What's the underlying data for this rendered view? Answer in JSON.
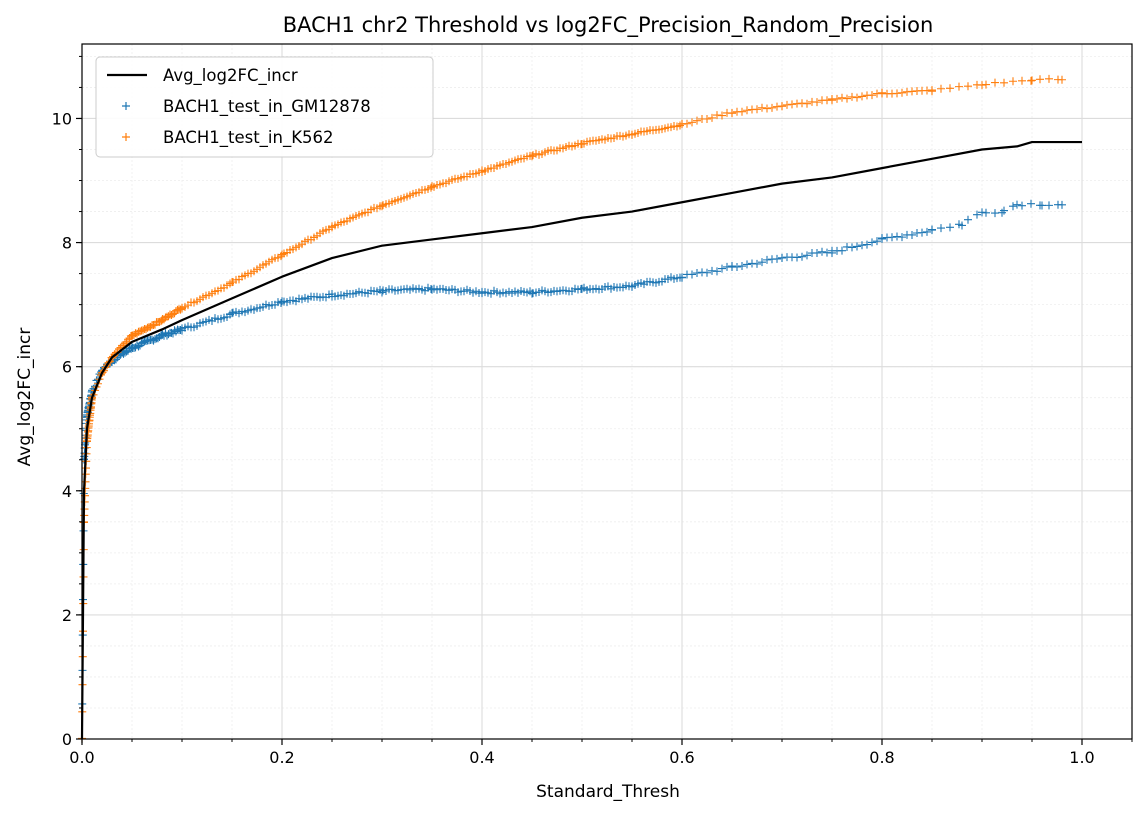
{
  "chart_data": {
    "type": "line",
    "title": "BACH1 chr2 Threshold vs log2FC_Precision_Random_Precision",
    "xlabel": "Standard_Thresh",
    "ylabel": "Avg_log2FC_incr",
    "xlim": [
      0.0,
      1.05
    ],
    "ylim": [
      0,
      11.2
    ],
    "xticks": [
      "0.0",
      "0.2",
      "0.4",
      "0.6",
      "0.8",
      "1.0"
    ],
    "yticks": [
      "0",
      "2",
      "4",
      "6",
      "8",
      "10"
    ],
    "grid": "major and minor",
    "legend_position": "top-left",
    "series": [
      {
        "name": "Avg_log2FC_incr",
        "style": "line",
        "color": "#000000",
        "x": [
          0.0,
          0.002,
          0.005,
          0.01,
          0.02,
          0.03,
          0.05,
          0.08,
          0.1,
          0.15,
          0.2,
          0.25,
          0.3,
          0.35,
          0.4,
          0.45,
          0.5,
          0.55,
          0.6,
          0.65,
          0.7,
          0.75,
          0.8,
          0.85,
          0.9,
          0.935,
          0.95,
          1.0
        ],
        "y": [
          0.0,
          4.0,
          5.0,
          5.5,
          5.9,
          6.15,
          6.4,
          6.6,
          6.75,
          7.1,
          7.45,
          7.75,
          7.95,
          8.05,
          8.15,
          8.25,
          8.4,
          8.5,
          8.65,
          8.8,
          8.95,
          9.05,
          9.2,
          9.35,
          9.5,
          9.55,
          9.62,
          9.62
        ]
      },
      {
        "name": "BACH1_test_in_GM12878",
        "style": "scatter",
        "marker": "+",
        "color": "#1f77b4",
        "x": [
          0.0,
          0.002,
          0.005,
          0.01,
          0.02,
          0.03,
          0.05,
          0.08,
          0.1,
          0.15,
          0.2,
          0.25,
          0.3,
          0.35,
          0.4,
          0.45,
          0.5,
          0.55,
          0.6,
          0.65,
          0.7,
          0.75,
          0.8,
          0.85,
          0.88,
          0.9,
          0.92,
          0.935,
          0.96,
          0.98
        ],
        "y": [
          0.0,
          4.5,
          5.2,
          5.6,
          5.95,
          6.1,
          6.3,
          6.5,
          6.6,
          6.85,
          7.05,
          7.15,
          7.22,
          7.25,
          7.2,
          7.2,
          7.25,
          7.3,
          7.45,
          7.6,
          7.75,
          7.85,
          8.05,
          8.2,
          8.3,
          8.5,
          8.5,
          8.62,
          8.62,
          8.62
        ]
      },
      {
        "name": "BACH1_test_in_K562",
        "style": "scatter",
        "marker": "+",
        "color": "#ff7f0e",
        "x": [
          0.0,
          0.002,
          0.005,
          0.01,
          0.02,
          0.03,
          0.05,
          0.08,
          0.1,
          0.15,
          0.2,
          0.25,
          0.3,
          0.35,
          0.4,
          0.45,
          0.5,
          0.55,
          0.6,
          0.65,
          0.7,
          0.75,
          0.8,
          0.85,
          0.9,
          0.95,
          0.98
        ],
        "y": [
          0.0,
          3.5,
          4.8,
          5.5,
          5.9,
          6.15,
          6.5,
          6.75,
          6.95,
          7.35,
          7.8,
          8.25,
          8.6,
          8.9,
          9.15,
          9.4,
          9.6,
          9.75,
          9.9,
          10.1,
          10.2,
          10.3,
          10.4,
          10.45,
          10.55,
          10.62,
          10.63
        ]
      }
    ]
  }
}
